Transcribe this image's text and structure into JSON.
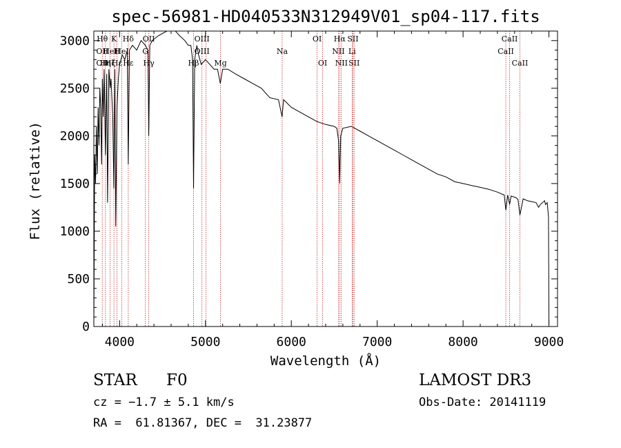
{
  "chart_data": {
    "type": "line",
    "title": "spec-56981-HD040533N312949V01_sp04-117.fits",
    "xlabel": "Wavelength (Å)",
    "ylabel": "Flux (relative)",
    "xlim": [
      3700,
      9100
    ],
    "ylim": [
      0,
      3100
    ],
    "xticks": [
      4000,
      5000,
      6000,
      7000,
      8000,
      9000
    ],
    "xtick_labels": [
      "4000",
      "5000",
      "6000",
      "7000",
      "8000",
      "9000"
    ],
    "yticks": [
      0,
      500,
      1000,
      1500,
      2000,
      2500,
      3000
    ],
    "ytick_labels": [
      "0",
      "500",
      "1000",
      "1500",
      "2000",
      "2500",
      "3000"
    ],
    "grid": false,
    "series": [
      {
        "name": "spectrum",
        "x": [
          3700,
          3710,
          3720,
          3730,
          3740,
          3750,
          3760,
          3770,
          3780,
          3790,
          3800,
          3810,
          3820,
          3835,
          3850,
          3860,
          3875,
          3890,
          3900,
          3920,
          3933,
          3945,
          3955,
          3970,
          3985,
          4000,
          4030,
          4060,
          4090,
          4101,
          4115,
          4150,
          4200,
          4250,
          4300,
          4330,
          4340,
          4352,
          4380,
          4450,
          4550,
          4650,
          4700,
          4760,
          4800,
          4830,
          4850,
          4861,
          4875,
          4900,
          4920,
          4950,
          5000,
          5050,
          5100,
          5140,
          5173,
          5200,
          5260,
          5350,
          5450,
          5550,
          5650,
          5750,
          5850,
          5892,
          5910,
          6000,
          6100,
          6200,
          6300,
          6400,
          6500,
          6530,
          6550,
          6563,
          6575,
          6600,
          6700,
          6800,
          6900,
          7000,
          7100,
          7200,
          7300,
          7400,
          7500,
          7600,
          7700,
          7800,
          7900,
          8000,
          8100,
          8200,
          8300,
          8400,
          8480,
          8498,
          8520,
          8542,
          8560,
          8620,
          8640,
          8662,
          8700,
          8750,
          8800,
          8850,
          8880,
          8900,
          8950,
          8960,
          8980,
          8995,
          9000
        ],
        "y": [
          0,
          1800,
          1500,
          2100,
          1600,
          2300,
          1900,
          2500,
          2300,
          1700,
          2600,
          2200,
          2700,
          1800,
          2650,
          1300,
          2700,
          2500,
          2600,
          2200,
          1450,
          2700,
          1050,
          2300,
          2600,
          2750,
          2850,
          2800,
          2900,
          1700,
          2900,
          2950,
          2900,
          3000,
          2950,
          2900,
          2000,
          2950,
          3000,
          3050,
          3100,
          3100,
          3050,
          3000,
          2950,
          2950,
          2800,
          1450,
          2800,
          2950,
          2850,
          2750,
          2800,
          2750,
          2700,
          2700,
          2550,
          2700,
          2700,
          2650,
          2600,
          2550,
          2500,
          2400,
          2380,
          2200,
          2380,
          2300,
          2250,
          2200,
          2150,
          2120,
          2100,
          2080,
          1950,
          1500,
          2000,
          2080,
          2100,
          2050,
          2000,
          1950,
          1900,
          1850,
          1800,
          1750,
          1700,
          1650,
          1600,
          1570,
          1520,
          1500,
          1480,
          1460,
          1440,
          1410,
          1380,
          1220,
          1380,
          1280,
          1370,
          1350,
          1330,
          1170,
          1340,
          1320,
          1310,
          1300,
          1250,
          1280,
          1320,
          1280,
          1300,
          1150,
          20
        ]
      }
    ],
    "line_markers": [
      {
        "wavelength": 3798,
        "top": "Hθ",
        "bottom": "OII",
        "third": "OII"
      },
      {
        "wavelength": 3835,
        "top": "",
        "bottom": "",
        "third": "Hη"
      },
      {
        "wavelength": 3889,
        "top": "",
        "bottom": "HeI",
        "third": "Hζ"
      },
      {
        "wavelength": 3934,
        "top": "K",
        "bottom": "",
        "third": ""
      },
      {
        "wavelength": 3969,
        "top": "",
        "bottom": "H",
        "third": "Hε"
      },
      {
        "wavelength": 4026,
        "top": "",
        "bottom": "HeI",
        "third": ""
      },
      {
        "wavelength": 4101,
        "top": "Hδ",
        "bottom": "",
        "third": "Hε"
      },
      {
        "wavelength": 4300,
        "top": "",
        "bottom": "G",
        "third": ""
      },
      {
        "wavelength": 4340,
        "top": "OII",
        "bottom": "",
        "third": "Hγ"
      },
      {
        "wavelength": 4861,
        "top": "",
        "bottom": "",
        "third": "Hβ"
      },
      {
        "wavelength": 4959,
        "top": "OIII",
        "bottom": "OIII",
        "third": ""
      },
      {
        "wavelength": 5007,
        "top": "",
        "bottom": "",
        "third": ""
      },
      {
        "wavelength": 5175,
        "top": "",
        "bottom": "",
        "third": "Mg"
      },
      {
        "wavelength": 5893,
        "top": "",
        "bottom": "Na",
        "third": ""
      },
      {
        "wavelength": 6300,
        "top": "OI",
        "bottom": "",
        "third": ""
      },
      {
        "wavelength": 6364,
        "top": "",
        "bottom": "",
        "third": "OI"
      },
      {
        "wavelength": 6548,
        "top": "",
        "bottom": "NII",
        "third": ""
      },
      {
        "wavelength": 6563,
        "top": "Hα",
        "bottom": "",
        "third": ""
      },
      {
        "wavelength": 6583,
        "top": "",
        "bottom": "",
        "third": "NII"
      },
      {
        "wavelength": 6708,
        "top": "",
        "bottom": "Li",
        "third": ""
      },
      {
        "wavelength": 6717,
        "top": "SII",
        "bottom": "",
        "third": ""
      },
      {
        "wavelength": 6731,
        "top": "",
        "bottom": "",
        "third": "SII"
      },
      {
        "wavelength": 8498,
        "top": "",
        "bottom": "CaII",
        "third": ""
      },
      {
        "wavelength": 8542,
        "top": "CaII",
        "bottom": "",
        "third": ""
      },
      {
        "wavelength": 8662,
        "top": "",
        "bottom": "",
        "third": "CaII"
      }
    ]
  },
  "info": {
    "object_class": "STAR",
    "subclass": "F0",
    "survey": "LAMOST DR3",
    "redshift_text": "cz = −1.7 ± 5.1 km/s",
    "obs_date": "Obs-Date: 20141119",
    "coords_text": "RA =  61.81367, DEC =  31.23877"
  },
  "colors": {
    "marker_line": "#cc2a2a",
    "spectrum": "#000000",
    "axes": "#000000"
  }
}
